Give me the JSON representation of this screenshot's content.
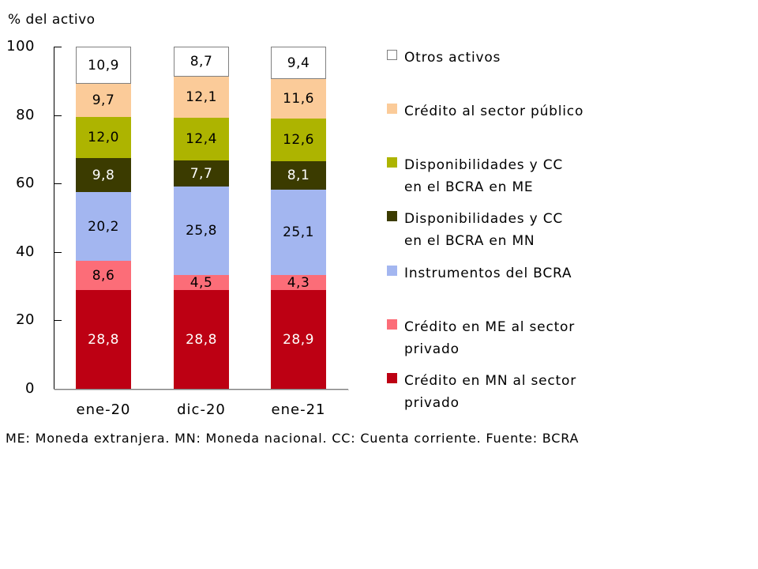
{
  "title": "% del activo",
  "footer": "ME: Moneda extranjera. MN: Moneda nacional. CC: Cuenta corriente. Fuente: BCRA",
  "chart_data": {
    "type": "bar",
    "stacked": true,
    "title": "% del activo",
    "categories": [
      "ene-20",
      "dic-20",
      "ene-21"
    ],
    "ylim": [
      0,
      100
    ],
    "yticks": [
      0,
      20,
      40,
      60,
      80,
      100
    ],
    "ytick_labels": [
      "0",
      "20",
      "40",
      "60",
      "80",
      "100"
    ],
    "grid": false,
    "legend_position": "right",
    "series": [
      {
        "name": "Crédito en MN al sector privado",
        "values": [
          28.8,
          28.8,
          28.9
        ],
        "labels": [
          "28,8",
          "28,8",
          "28,9"
        ],
        "color": "#BD0013",
        "label_color": "#FFFFFF"
      },
      {
        "name": "Crédito en ME al sector privado",
        "values": [
          8.6,
          4.5,
          4.3
        ],
        "labels": [
          "8,6",
          "4,5",
          "4,3"
        ],
        "color": "#FC6D78",
        "label_color": "#000000"
      },
      {
        "name": "Instrumentos del BCRA",
        "values": [
          20.2,
          25.8,
          25.1
        ],
        "labels": [
          "20,2",
          "25,8",
          "25,1"
        ],
        "color": "#A3B6F0",
        "label_color": "#000000"
      },
      {
        "name": "Disponibilidades y CC en el BCRA en MN",
        "values": [
          9.8,
          7.7,
          8.1
        ],
        "labels": [
          "9,8",
          "7,7",
          "8,1"
        ],
        "color": "#3B3B00",
        "label_color": "#FFFFFF"
      },
      {
        "name": "Disponibilidades y CC en el BCRA en ME",
        "values": [
          12.0,
          12.4,
          12.6
        ],
        "labels": [
          "12,0",
          "12,4",
          "12,6"
        ],
        "color": "#ADB400",
        "label_color": "#000000"
      },
      {
        "name": "Crédito al sector público",
        "values": [
          9.7,
          12.1,
          11.6
        ],
        "labels": [
          "9,7",
          "12,1",
          "11,6"
        ],
        "color": "#FBCB99",
        "label_color": "#000000"
      },
      {
        "name": "Otros activos",
        "values": [
          10.9,
          8.7,
          9.4
        ],
        "labels": [
          "10,9",
          "8,7",
          "9,4"
        ],
        "color": "#FFFFFF",
        "border_color": "#808080",
        "label_color": "#000000"
      }
    ],
    "legend": [
      {
        "lines": [
          "Otros activos"
        ],
        "color": "#FFFFFF",
        "border_color": "#808080"
      },
      {
        "lines": [
          "Crédito al sector público"
        ],
        "color": "#FBCB99"
      },
      {
        "lines": [
          "Disponibilidades y CC",
          "en el BCRA en ME"
        ],
        "color": "#ADB400"
      },
      {
        "lines": [
          "Disponibilidades y CC",
          "en el BCRA en MN"
        ],
        "color": "#3B3B00"
      },
      {
        "lines": [
          "Instrumentos del BCRA"
        ],
        "color": "#A3B6F0"
      },
      {
        "lines": [
          "Crédito en ME al sector",
          "privado"
        ],
        "color": "#FC6D78"
      },
      {
        "lines": [
          "Crédito en MN al sector",
          "privado"
        ],
        "color": "#BD0013"
      }
    ]
  }
}
